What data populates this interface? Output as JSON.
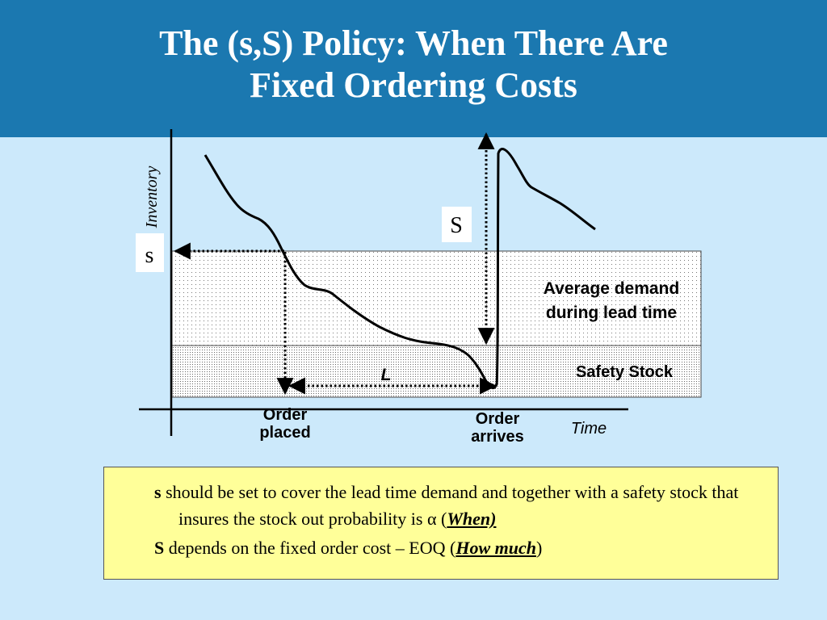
{
  "slide": {
    "title_line1": "The (s,S) Policy: When There Are",
    "title_line2": "Fixed Ordering Costs"
  },
  "diagram": {
    "y_axis_label": "Inventory",
    "x_axis_label": "Time",
    "s_label": "s",
    "S_label": "S",
    "lead_time_label": "L",
    "order_placed_line1": "Order",
    "order_placed_line2": "placed",
    "order_arrives_line1": "Order",
    "order_arrives_line2": "arrives",
    "avg_demand_line1": "Average demand",
    "avg_demand_line2": "during lead time",
    "safety_stock_label": "Safety Stock"
  },
  "notes": {
    "note1_key": "s",
    "note1_text": " should be set to cover the lead time demand and together with a safety stock that insures the stock out probability is α (",
    "note1_emph": "When)",
    "note2_key": "S",
    "note2_text": " depends on the fixed order cost – EOQ (",
    "note2_emph": "How much",
    "note2_tail": ")"
  }
}
